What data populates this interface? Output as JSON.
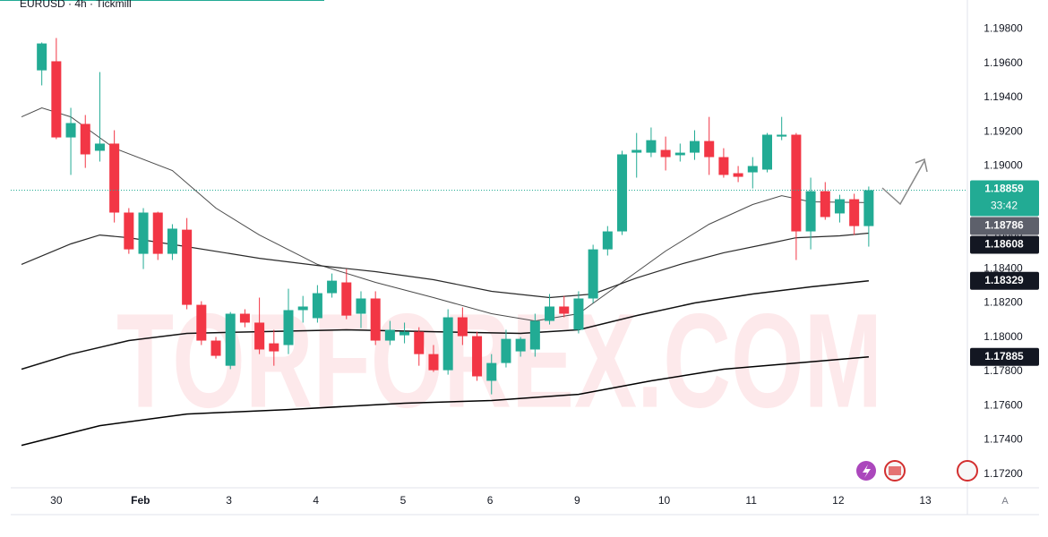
{
  "chart_data": {
    "type": "candlestick",
    "title": "EURUSD · 4h · Tickmill",
    "watermark": "TORFOREX.COM",
    "up_color": "#22ab94",
    "down_color": "#f23645",
    "open": [
      1.19559,
      1.19612,
      1.19167,
      1.19246,
      1.19089,
      1.19131,
      1.18728,
      1.18487,
      1.18728,
      1.18487,
      1.18628,
      1.18189,
      1.1798,
      1.17833,
      1.18137,
      1.18085,
      1.17964,
      1.17954,
      1.18158,
      1.18111,
      1.18257,
      1.1832,
      1.18137,
      1.18226,
      1.1798,
      1.18011,
      1.18032,
      1.17901,
      1.17807,
      1.18116,
      1.18006,
      1.17745,
      1.17849,
      1.17917,
      1.17928,
      1.18095,
      1.18179,
      1.18043,
      1.18226,
      1.18513,
      1.18618,
      1.19078,
      1.19078,
      1.19094,
      1.19063,
      1.19078,
      1.19146,
      1.19052,
      1.18958,
      1.18963,
      1.18979,
      1.19172,
      1.19183,
      1.18618,
      1.18853,
      1.18723,
      1.18806,
      1.18649
    ],
    "high": [
      1.19722,
      1.19748,
      1.1934,
      1.19298,
      1.19549,
      1.19209,
      1.18754,
      1.18754,
      1.18733,
      1.1866,
      1.18696,
      1.1821,
      1.18001,
      1.18147,
      1.18163,
      1.18231,
      1.18043,
      1.18283,
      1.18241,
      1.18304,
      1.18372,
      1.18398,
      1.18268,
      1.18268,
      1.18095,
      1.18085,
      1.18058,
      1.17954,
      1.18163,
      1.18174,
      1.18032,
      1.17901,
      1.18043,
      1.18001,
      1.18137,
      1.18252,
      1.18241,
      1.18268,
      1.1854,
      1.18649,
      1.19089,
      1.19193,
      1.19225,
      1.19172,
      1.19131,
      1.19209,
      1.19287,
      1.19104,
      1.19,
      1.19052,
      1.19193,
      1.19287,
      1.19193,
      1.18932,
      1.18906,
      1.18832,
      1.18838,
      1.1888
    ],
    "low": [
      1.19471,
      1.19157,
      1.18948,
      1.18989,
      1.19026,
      1.1867,
      1.18487,
      1.18398,
      1.18451,
      1.18451,
      1.18163,
      1.17954,
      1.17875,
      1.17813,
      1.18058,
      1.17901,
      1.17833,
      1.17901,
      1.18085,
      1.18085,
      1.18231,
      1.18105,
      1.18053,
      1.17954,
      1.17954,
      1.17964,
      1.17833,
      1.17797,
      1.17781,
      1.17954,
      1.17745,
      1.17666,
      1.17823,
      1.17886,
      1.17886,
      1.18074,
      1.18116,
      1.18022,
      1.182,
      1.18477,
      1.18597,
      1.18932,
      1.19052,
      1.18974,
      1.19026,
      1.19036,
      1.18948,
      1.18932,
      1.18906,
      1.18869,
      1.18963,
      1.19151,
      1.18451,
      1.18513,
      1.18686,
      1.1867,
      1.18597,
      1.18529
    ],
    "close": [
      1.19716,
      1.19167,
      1.19251,
      1.19068,
      1.19131,
      1.18728,
      1.18513,
      1.18728,
      1.18487,
      1.18634,
      1.18189,
      1.1798,
      1.17891,
      1.18137,
      1.18085,
      1.17928,
      1.17917,
      1.18158,
      1.18179,
      1.18257,
      1.1833,
      1.18126,
      1.18226,
      1.1798,
      1.18043,
      1.18032,
      1.17901,
      1.17807,
      1.18116,
      1.18006,
      1.17771,
      1.17849,
      1.1799,
      1.1799,
      1.18095,
      1.18179,
      1.18137,
      1.18226,
      1.18513,
      1.18618,
      1.19068,
      1.19094,
      1.19151,
      1.19052,
      1.19078,
      1.19146,
      1.19052,
      1.18948,
      1.18937,
      1.19,
      1.19183,
      1.19183,
      1.18618,
      1.18853,
      1.18702,
      1.18806,
      1.18649,
      1.18859
    ],
    "countdown": "33:42",
    "overlays": [
      {
        "type": "line",
        "color": "#4a4a4a",
        "width": 1,
        "x": [
          -1.4,
          0,
          2,
          5,
          9,
          12,
          15,
          19,
          23,
          27,
          31,
          34,
          37,
          40,
          43,
          46,
          49,
          51,
          53,
          57
        ],
        "values": [
          1.19287,
          1.1934,
          1.19287,
          1.19104,
          1.18974,
          1.18754,
          1.18597,
          1.18425,
          1.1832,
          1.18231,
          1.18137,
          1.18095,
          1.18137,
          1.1832,
          1.18503,
          1.1866,
          1.18775,
          1.18827,
          1.18791,
          1.18786
        ]
      },
      {
        "type": "line",
        "color": "#2a2a2a",
        "width": 1.2,
        "x": [
          -1.4,
          2,
          4,
          6,
          10,
          15,
          19,
          23,
          27,
          31,
          35,
          38,
          41,
          44,
          47,
          50,
          52,
          55,
          57
        ],
        "values": [
          1.18425,
          1.18545,
          1.18597,
          1.18581,
          1.18529,
          1.18461,
          1.18419,
          1.18383,
          1.18336,
          1.18268,
          1.18231,
          1.18252,
          1.18346,
          1.18425,
          1.18493,
          1.18545,
          1.18581,
          1.18592,
          1.18608
        ]
      },
      {
        "type": "line",
        "color": "#111111",
        "width": 1.5,
        "x": [
          -1.4,
          2,
          6,
          10,
          15,
          21,
          27,
          33,
          37,
          41,
          45,
          49,
          53,
          57
        ],
        "values": [
          1.17813,
          1.17901,
          1.1798,
          1.18022,
          1.18032,
          1.18043,
          1.18032,
          1.18022,
          1.18043,
          1.18126,
          1.182,
          1.18252,
          1.18294,
          1.18329
        ]
      },
      {
        "type": "line",
        "color": "#000000",
        "width": 1.5,
        "x": [
          -1.4,
          4,
          10,
          17,
          25,
          31,
          37,
          42,
          47,
          52,
          57
        ],
        "values": [
          1.17368,
          1.17483,
          1.17551,
          1.17577,
          1.17614,
          1.1763,
          1.17666,
          1.17745,
          1.17813,
          1.17849,
          1.17885
        ]
      }
    ],
    "xlim": [
      -2.14,
      63.8
    ],
    "xticks": [
      {
        "value": 1,
        "label": "30"
      },
      {
        "value": 6.8,
        "label": "Feb"
      },
      {
        "value": 12.9,
        "label": "3"
      },
      {
        "value": 18.9,
        "label": "4"
      },
      {
        "value": 24.9,
        "label": "5"
      },
      {
        "value": 30.9,
        "label": "6"
      },
      {
        "value": 36.9,
        "label": "9"
      },
      {
        "value": 42.9,
        "label": "10"
      },
      {
        "value": 48.9,
        "label": "11"
      },
      {
        "value": 54.9,
        "label": "12"
      },
      {
        "value": 60.9,
        "label": "13"
      }
    ],
    "ylim": [
      1.1712,
      1.1997
    ],
    "yticks": [
      {
        "value": 1.198,
        "label": "1.19800"
      },
      {
        "value": 1.196,
        "label": "1.19600"
      },
      {
        "value": 1.194,
        "label": "1.19400"
      },
      {
        "value": 1.192,
        "label": "1.19200"
      },
      {
        "value": 1.19,
        "label": "1.19000"
      },
      {
        "value": 1.188,
        "label": "1.18800"
      },
      {
        "value": 1.186,
        "label": "1.18600"
      },
      {
        "value": 1.184,
        "label": "1.18400"
      },
      {
        "value": 1.182,
        "label": "1.18200"
      },
      {
        "value": 1.18,
        "label": "1.18000"
      },
      {
        "value": 1.178,
        "label": "1.17800"
      },
      {
        "value": 1.176,
        "label": "1.17600"
      },
      {
        "value": 1.174,
        "label": "1.17400"
      },
      {
        "value": 1.172,
        "label": "1.17200"
      }
    ],
    "scale_button": "A"
  }
}
